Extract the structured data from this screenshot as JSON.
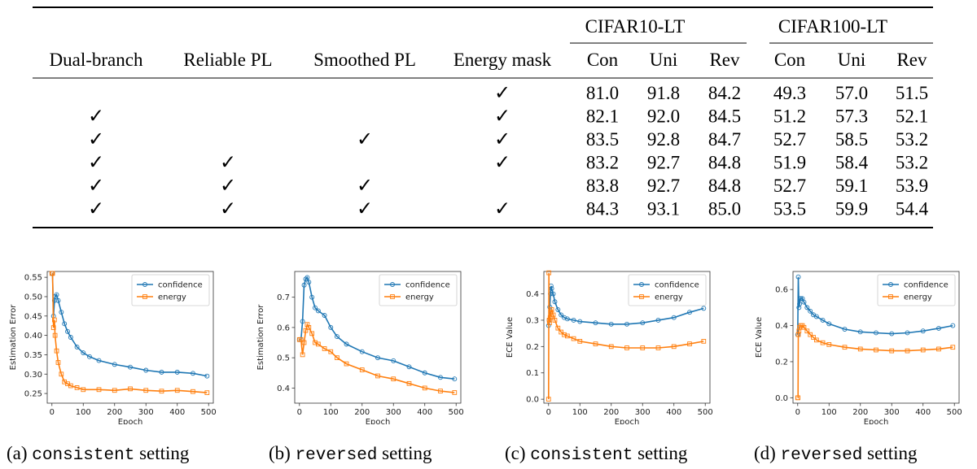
{
  "table": {
    "group_headers": [
      "CIFAR10-LT",
      "CIFAR100-LT"
    ],
    "columns": [
      "Dual-branch",
      "Reliable PL",
      "Smoothed PL",
      "Energy mask",
      "Con",
      "Uni",
      "Rev",
      "Con",
      "Uni",
      "Rev"
    ],
    "check_glyph": "✓",
    "rows": [
      {
        "checks": [
          false,
          false,
          false,
          true
        ],
        "values": [
          "81.0",
          "91.8",
          "84.2",
          "49.3",
          "57.0",
          "51.5"
        ]
      },
      {
        "checks": [
          true,
          false,
          false,
          true
        ],
        "values": [
          "82.1",
          "92.0",
          "84.5",
          "51.2",
          "57.3",
          "52.1"
        ]
      },
      {
        "checks": [
          true,
          false,
          true,
          true
        ],
        "values": [
          "83.5",
          "92.8",
          "84.7",
          "52.7",
          "58.5",
          "53.2"
        ]
      },
      {
        "checks": [
          true,
          true,
          false,
          true
        ],
        "values": [
          "83.2",
          "92.7",
          "84.8",
          "51.9",
          "58.4",
          "53.2"
        ]
      },
      {
        "checks": [
          true,
          true,
          true,
          false
        ],
        "values": [
          "83.8",
          "92.7",
          "84.8",
          "52.7",
          "59.1",
          "53.9"
        ]
      },
      {
        "checks": [
          true,
          true,
          true,
          true
        ],
        "values": [
          "84.3",
          "93.1",
          "85.0",
          "53.5",
          "59.9",
          "54.4"
        ]
      }
    ]
  },
  "colors": {
    "confidence": "#1f77b4",
    "energy": "#ff7f0e"
  },
  "chart_data": [
    {
      "type": "line",
      "xlabel": "Epoch",
      "ylabel": "Estimation Error",
      "xlim": [
        -15,
        515
      ],
      "ylim": [
        0.225,
        0.565
      ],
      "xticks": [
        0,
        100,
        200,
        300,
        400,
        500
      ],
      "yticks": [
        0.25,
        0.3,
        0.35,
        0.4,
        0.45,
        0.5,
        0.55
      ],
      "ytick_labels": [
        "0.25",
        "0.30",
        "0.35",
        "0.40",
        "0.45",
        "0.50",
        "0.55"
      ],
      "legend": "top-right",
      "series": [
        {
          "name": "confidence",
          "marker": "circle",
          "x": [
            0,
            2,
            5,
            8,
            10,
            15,
            20,
            30,
            40,
            50,
            60,
            80,
            100,
            120,
            150,
            200,
            250,
            300,
            350,
            400,
            450,
            495
          ],
          "y": [
            0.56,
            0.56,
            0.45,
            0.49,
            0.5,
            0.505,
            0.49,
            0.46,
            0.43,
            0.41,
            0.395,
            0.37,
            0.355,
            0.345,
            0.335,
            0.325,
            0.318,
            0.31,
            0.305,
            0.305,
            0.302,
            0.295
          ]
        },
        {
          "name": "energy",
          "marker": "square",
          "x": [
            0,
            2,
            5,
            8,
            10,
            15,
            20,
            30,
            40,
            50,
            60,
            80,
            100,
            150,
            200,
            250,
            300,
            350,
            400,
            450,
            495
          ],
          "y": [
            0.56,
            0.56,
            0.42,
            0.44,
            0.4,
            0.36,
            0.33,
            0.3,
            0.28,
            0.275,
            0.27,
            0.265,
            0.26,
            0.26,
            0.258,
            0.262,
            0.258,
            0.256,
            0.258,
            0.255,
            0.252
          ]
        }
      ]
    },
    {
      "type": "line",
      "xlabel": "Epoch",
      "ylabel": "Estimation Error",
      "xlim": [
        -15,
        515
      ],
      "ylim": [
        0.35,
        0.785
      ],
      "xticks": [
        0,
        100,
        200,
        300,
        400,
        500
      ],
      "yticks": [
        0.4,
        0.5,
        0.6,
        0.7
      ],
      "ytick_labels": [
        "0.4",
        "0.5",
        "0.6",
        "0.7"
      ],
      "legend": "top-right",
      "series": [
        {
          "name": "confidence",
          "marker": "circle",
          "x": [
            0,
            5,
            10,
            15,
            20,
            25,
            30,
            40,
            50,
            60,
            80,
            100,
            120,
            150,
            200,
            250,
            300,
            350,
            400,
            450,
            495
          ],
          "y": [
            0.56,
            0.56,
            0.62,
            0.74,
            0.76,
            0.765,
            0.75,
            0.7,
            0.665,
            0.655,
            0.64,
            0.6,
            0.57,
            0.545,
            0.52,
            0.5,
            0.49,
            0.47,
            0.45,
            0.435,
            0.43
          ]
        },
        {
          "name": "energy",
          "marker": "square",
          "x": [
            0,
            5,
            10,
            15,
            20,
            25,
            30,
            40,
            50,
            60,
            80,
            100,
            120,
            150,
            200,
            250,
            300,
            350,
            400,
            450,
            495
          ],
          "y": [
            0.56,
            0.56,
            0.51,
            0.55,
            0.59,
            0.61,
            0.6,
            0.58,
            0.55,
            0.545,
            0.53,
            0.52,
            0.5,
            0.48,
            0.46,
            0.44,
            0.43,
            0.415,
            0.4,
            0.39,
            0.385
          ]
        }
      ]
    },
    {
      "type": "line",
      "xlabel": "Epoch",
      "ylabel": "ECE Value",
      "xlim": [
        -15,
        515
      ],
      "ylim": [
        -0.015,
        0.485
      ],
      "xticks": [
        0,
        100,
        200,
        300,
        400,
        500
      ],
      "yticks": [
        0.0,
        0.1,
        0.2,
        0.3,
        0.4
      ],
      "ytick_labels": [
        "0.0",
        "0.1",
        "0.2",
        "0.3",
        "0.4"
      ],
      "legend": "top-right",
      "series": [
        {
          "name": "confidence",
          "marker": "circle",
          "x": [
            0,
            2,
            4,
            6,
            8,
            10,
            15,
            20,
            30,
            40,
            50,
            60,
            80,
            100,
            150,
            200,
            250,
            300,
            350,
            400,
            450,
            495
          ],
          "y": [
            0.28,
            0.3,
            0.35,
            0.4,
            0.43,
            0.42,
            0.4,
            0.37,
            0.34,
            0.32,
            0.31,
            0.305,
            0.3,
            0.295,
            0.29,
            0.285,
            0.285,
            0.29,
            0.3,
            0.31,
            0.33,
            0.345
          ]
        },
        {
          "name": "energy",
          "marker": "square",
          "x": [
            0,
            1,
            2,
            3,
            5,
            7,
            10,
            15,
            20,
            30,
            40,
            50,
            60,
            80,
            100,
            150,
            200,
            250,
            300,
            350,
            400,
            450,
            495
          ],
          "y": [
            0.0,
            0.48,
            0.3,
            0.29,
            0.31,
            0.33,
            0.34,
            0.32,
            0.3,
            0.27,
            0.255,
            0.245,
            0.24,
            0.23,
            0.22,
            0.21,
            0.2,
            0.195,
            0.195,
            0.195,
            0.2,
            0.21,
            0.22
          ]
        }
      ]
    },
    {
      "type": "line",
      "xlabel": "Epoch",
      "ylabel": "ECE Value",
      "xlim": [
        -15,
        515
      ],
      "ylim": [
        -0.03,
        0.7
      ],
      "xticks": [
        0,
        100,
        200,
        300,
        400,
        500
      ],
      "yticks": [
        0.0,
        0.2,
        0.4,
        0.6
      ],
      "ytick_labels": [
        "0.0",
        "0.2",
        "0.4",
        "0.6"
      ],
      "legend": "top-right",
      "series": [
        {
          "name": "confidence",
          "marker": "circle",
          "x": [
            0,
            2,
            4,
            6,
            8,
            10,
            15,
            20,
            30,
            40,
            50,
            60,
            80,
            100,
            150,
            200,
            250,
            300,
            350,
            400,
            450,
            495
          ],
          "y": [
            0.35,
            0.67,
            0.5,
            0.52,
            0.55,
            0.55,
            0.55,
            0.53,
            0.5,
            0.48,
            0.46,
            0.45,
            0.43,
            0.41,
            0.38,
            0.365,
            0.36,
            0.355,
            0.36,
            0.37,
            0.385,
            0.4
          ]
        },
        {
          "name": "energy",
          "marker": "square",
          "x": [
            0,
            1,
            2,
            4,
            6,
            10,
            15,
            20,
            30,
            40,
            50,
            60,
            80,
            100,
            150,
            200,
            250,
            300,
            350,
            400,
            450,
            495
          ],
          "y": [
            0.0,
            0.0,
            0.35,
            0.37,
            0.39,
            0.4,
            0.4,
            0.39,
            0.37,
            0.35,
            0.335,
            0.32,
            0.305,
            0.295,
            0.28,
            0.27,
            0.265,
            0.26,
            0.26,
            0.265,
            0.27,
            0.28
          ]
        }
      ]
    }
  ],
  "captions": [
    {
      "prefix": "(a)",
      "setting": "consistent",
      "suffix": "setting"
    },
    {
      "prefix": "(b)",
      "setting": "reversed",
      "suffix": "setting"
    },
    {
      "prefix": "(c)",
      "setting": "consistent",
      "suffix": "setting"
    },
    {
      "prefix": "(d)",
      "setting": "reversed",
      "suffix": "setting"
    }
  ]
}
